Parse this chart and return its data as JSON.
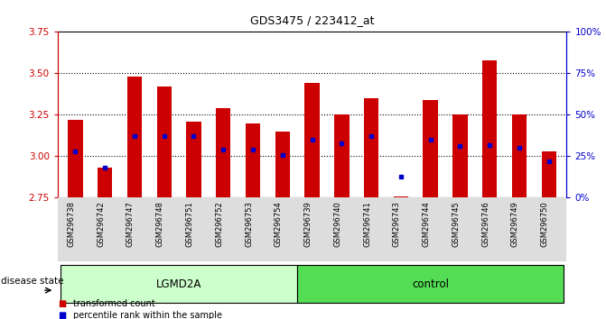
{
  "title": "GDS3475 / 223412_at",
  "samples": [
    "GSM296738",
    "GSM296742",
    "GSM296747",
    "GSM296748",
    "GSM296751",
    "GSM296752",
    "GSM296753",
    "GSM296754",
    "GSM296739",
    "GSM296740",
    "GSM296741",
    "GSM296743",
    "GSM296744",
    "GSM296745",
    "GSM296746",
    "GSM296749",
    "GSM296750"
  ],
  "bar_heights": [
    3.22,
    2.93,
    3.48,
    3.42,
    3.21,
    3.29,
    3.2,
    3.15,
    3.44,
    3.25,
    3.35,
    2.76,
    3.34,
    3.25,
    3.58,
    3.25,
    3.03
  ],
  "blue_dot_values": [
    3.03,
    2.93,
    3.12,
    3.12,
    3.12,
    3.04,
    3.04,
    3.01,
    3.1,
    3.08,
    3.12,
    2.88,
    3.1,
    3.06,
    3.07,
    3.05,
    2.97
  ],
  "groups": [
    {
      "label": "LGMD2A",
      "start": 0,
      "end": 8,
      "color": "#ccffcc"
    },
    {
      "label": "control",
      "start": 8,
      "end": 17,
      "color": "#55dd55"
    }
  ],
  "bar_color": "#cc0000",
  "dot_color": "#0000cc",
  "ylim_left": [
    2.75,
    3.75
  ],
  "ylim_right": [
    0,
    100
  ],
  "yticks_left": [
    2.75,
    3.0,
    3.25,
    3.5,
    3.75
  ],
  "yticks_right": [
    0,
    25,
    50,
    75,
    100
  ],
  "ytick_labels_right": [
    "0%",
    "25%",
    "50%",
    "75%",
    "100%"
  ],
  "bar_width": 0.5,
  "disease_state_label": "disease state",
  "legend_items": [
    "transformed count",
    "percentile rank within the sample"
  ],
  "left_tick_color": "#cc0000",
  "right_tick_color": "#0000cc"
}
